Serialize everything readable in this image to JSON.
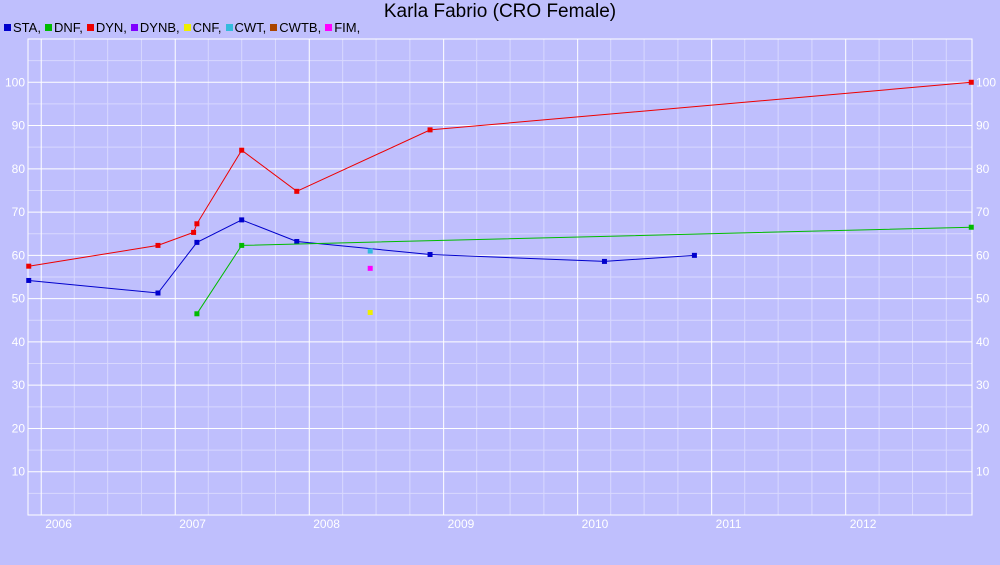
{
  "title": "Karla Fabrio (CRO Female)",
  "colors": {
    "background": "#bfbffd",
    "grid_major": "#ffffff",
    "grid_minor": "#d8d8fe"
  },
  "chart_data": {
    "type": "line",
    "title": "Karla Fabrio (CRO Female)",
    "xlabel": "",
    "ylabel": "",
    "x_type": "date",
    "xlim": [
      "2005-11-26",
      "2012-12-10"
    ],
    "ylim": [
      0,
      110
    ],
    "x_ticks": [
      {
        "date": "2006-01-01",
        "label": "2006"
      },
      {
        "date": "2007-01-01",
        "label": "2007"
      },
      {
        "date": "2008-01-01",
        "label": "2008"
      },
      {
        "date": "2009-01-01",
        "label": "2009"
      },
      {
        "date": "2010-01-01",
        "label": "2010"
      },
      {
        "date": "2011-01-01",
        "label": "2011"
      },
      {
        "date": "2012-01-01",
        "label": "2012"
      }
    ],
    "y_ticks": [
      10,
      20,
      30,
      40,
      50,
      60,
      70,
      80,
      90,
      100
    ],
    "grid": true,
    "legend_position": "top-left",
    "series": [
      {
        "name": "STA",
        "color": "#0000cc",
        "points": [
          {
            "x": "2005-11-28",
            "y": 54.2
          },
          {
            "x": "2006-11-15",
            "y": 51.3
          },
          {
            "x": "2007-03-01",
            "y": 63.0
          },
          {
            "x": "2007-07-01",
            "y": 68.2
          },
          {
            "x": "2007-11-28",
            "y": 63.2
          },
          {
            "x": "2008-11-25",
            "y": 60.2
          },
          {
            "x": "2010-03-15",
            "y": 58.6
          },
          {
            "x": "2010-11-15",
            "y": 60.0
          }
        ]
      },
      {
        "name": "DNF",
        "color": "#00bb00",
        "points": [
          {
            "x": "2007-03-01",
            "y": 46.5
          },
          {
            "x": "2007-07-01",
            "y": 62.3
          },
          {
            "x": "2012-12-08",
            "y": 66.5
          }
        ]
      },
      {
        "name": "DYN",
        "color": "#ee0000",
        "points": [
          {
            "x": "2005-11-28",
            "y": 57.5
          },
          {
            "x": "2006-11-15",
            "y": 62.3
          },
          {
            "x": "2007-02-20",
            "y": 65.3
          },
          {
            "x": "2007-03-01",
            "y": 67.3
          },
          {
            "x": "2007-07-01",
            "y": 84.3
          },
          {
            "x": "2007-11-28",
            "y": 74.8
          },
          {
            "x": "2008-11-25",
            "y": 89.0
          },
          {
            "x": "2012-12-08",
            "y": 100.0
          }
        ]
      },
      {
        "name": "DYNB",
        "color": "#7f00ff",
        "points": []
      },
      {
        "name": "CNF",
        "color": "#eeee00",
        "points": [
          {
            "x": "2008-06-15",
            "y": 46.8
          }
        ]
      },
      {
        "name": "CWT",
        "color": "#33bbdd",
        "points": [
          {
            "x": "2008-06-15",
            "y": 61.0
          }
        ]
      },
      {
        "name": "CWTB",
        "color": "#aa4400",
        "points": []
      },
      {
        "name": "FIM",
        "color": "#ff00ff",
        "points": [
          {
            "x": "2008-06-15",
            "y": 57.0
          }
        ]
      }
    ]
  }
}
